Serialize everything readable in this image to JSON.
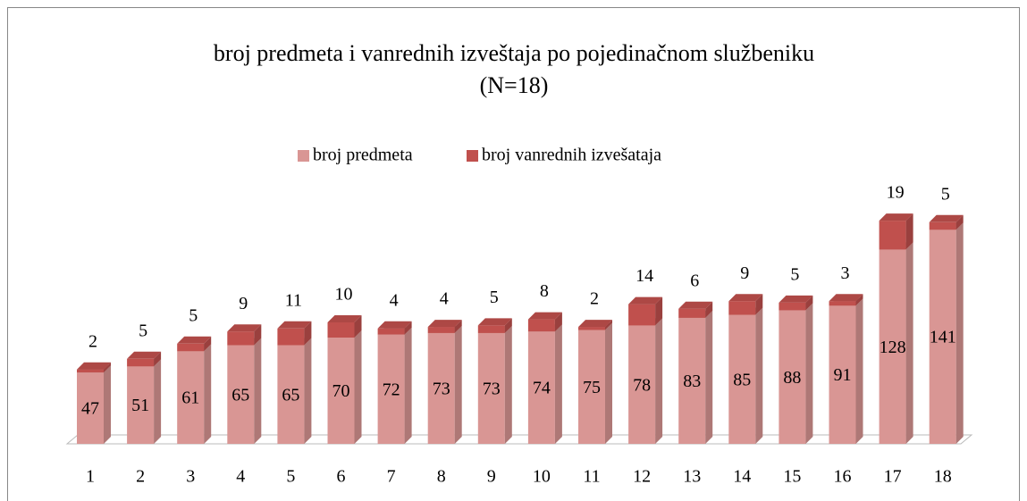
{
  "chart_data": {
    "type": "bar3d_stacked",
    "title": "broj predmeta i vanrednih izveštaja po pojedinačnom službeniku",
    "subtitle": "(N=18)",
    "categories": [
      "1",
      "2",
      "3",
      "4",
      "5",
      "6",
      "7",
      "8",
      "9",
      "10",
      "11",
      "12",
      "13",
      "14",
      "15",
      "16",
      "17",
      "18"
    ],
    "series": [
      {
        "name": "broj predmeta",
        "color": "#d99694",
        "values": [
          47,
          51,
          61,
          65,
          65,
          70,
          72,
          73,
          73,
          74,
          75,
          78,
          83,
          85,
          88,
          91,
          128,
          141
        ]
      },
      {
        "name": "broj vanrednih izvešataja",
        "color": "#c0504d",
        "values": [
          2,
          5,
          5,
          9,
          11,
          10,
          4,
          4,
          5,
          8,
          2,
          14,
          6,
          9,
          5,
          3,
          19,
          5
        ]
      }
    ],
    "legend": "top"
  }
}
